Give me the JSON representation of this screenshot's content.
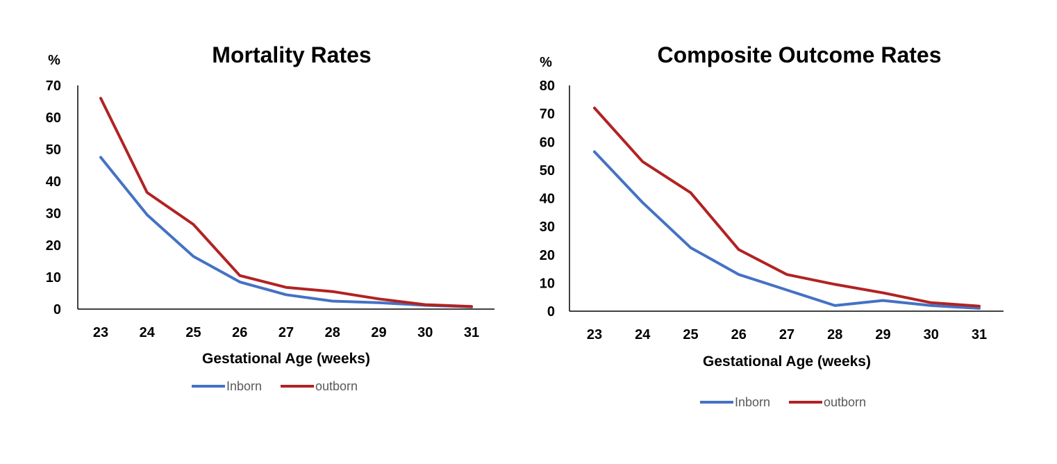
{
  "chart_data": [
    {
      "type": "line",
      "title": "Mortality Rates",
      "y_unit": "%",
      "xlabel": "Gestational Age (weeks)",
      "ylabel": "",
      "categories": [
        "23",
        "24",
        "25",
        "26",
        "27",
        "28",
        "29",
        "30",
        "31"
      ],
      "ylim": [
        0,
        70
      ],
      "yticks": [
        0,
        10,
        20,
        30,
        40,
        50,
        60,
        70
      ],
      "grid": false,
      "legend": "bottom",
      "series": [
        {
          "name": "Inborn",
          "color": "#4472C4",
          "values": [
            47.5,
            29.5,
            16.5,
            8.5,
            4.5,
            2.5,
            2.0,
            1.2,
            0.7
          ]
        },
        {
          "name": "outborn",
          "color": "#B22222",
          "values": [
            66.0,
            36.5,
            26.5,
            10.5,
            6.8,
            5.5,
            3.2,
            1.4,
            0.8
          ]
        }
      ]
    },
    {
      "type": "line",
      "title": "Composite Outcome Rates",
      "y_unit": "%",
      "xlabel": "Gestational Age (weeks)",
      "ylabel": "",
      "categories": [
        "23",
        "24",
        "25",
        "26",
        "27",
        "28",
        "29",
        "30",
        "31"
      ],
      "ylim": [
        0,
        80
      ],
      "yticks": [
        0,
        10,
        20,
        30,
        40,
        50,
        60,
        70,
        80
      ],
      "grid": false,
      "legend": "bottom",
      "series": [
        {
          "name": "Inborn",
          "color": "#4472C4",
          "values": [
            56.5,
            38.5,
            22.5,
            13.0,
            7.5,
            2.0,
            3.8,
            2.0,
            1.0
          ]
        },
        {
          "name": "outborn",
          "color": "#B22222",
          "values": [
            72.0,
            53.0,
            42.0,
            21.8,
            13.0,
            9.5,
            6.5,
            3.0,
            1.8
          ]
        }
      ]
    }
  ]
}
